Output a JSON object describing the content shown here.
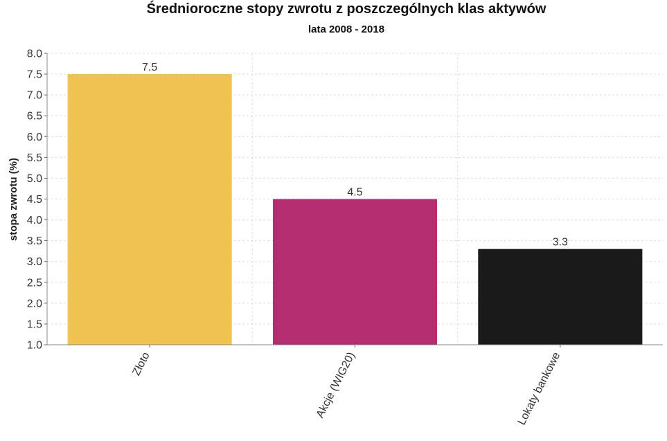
{
  "chart_data": {
    "type": "bar",
    "title": "Średnioroczne stopy zwrotu z poszczególnych klas aktywów",
    "subtitle": "lata 2008 - 2018",
    "xlabel": "",
    "ylabel": "stopa zwrotu (%)",
    "categories": [
      "Złoto",
      "Akcje (WIG20)",
      "Lokaty bankowe"
    ],
    "values": [
      7.5,
      4.5,
      3.3
    ],
    "data_labels": [
      "7.5",
      "4.5",
      "3.3"
    ],
    "colors": [
      "#f0c350",
      "#b32d70",
      "#1a1a1a"
    ],
    "ylim": [
      1.0,
      8.0
    ],
    "yticks": [
      "1.0",
      "1.5",
      "2.0",
      "2.5",
      "3.0",
      "3.5",
      "4.0",
      "4.5",
      "5.0",
      "5.5",
      "6.0",
      "6.5",
      "7.0",
      "7.5",
      "8.0"
    ],
    "grid": true,
    "legend": "none"
  }
}
